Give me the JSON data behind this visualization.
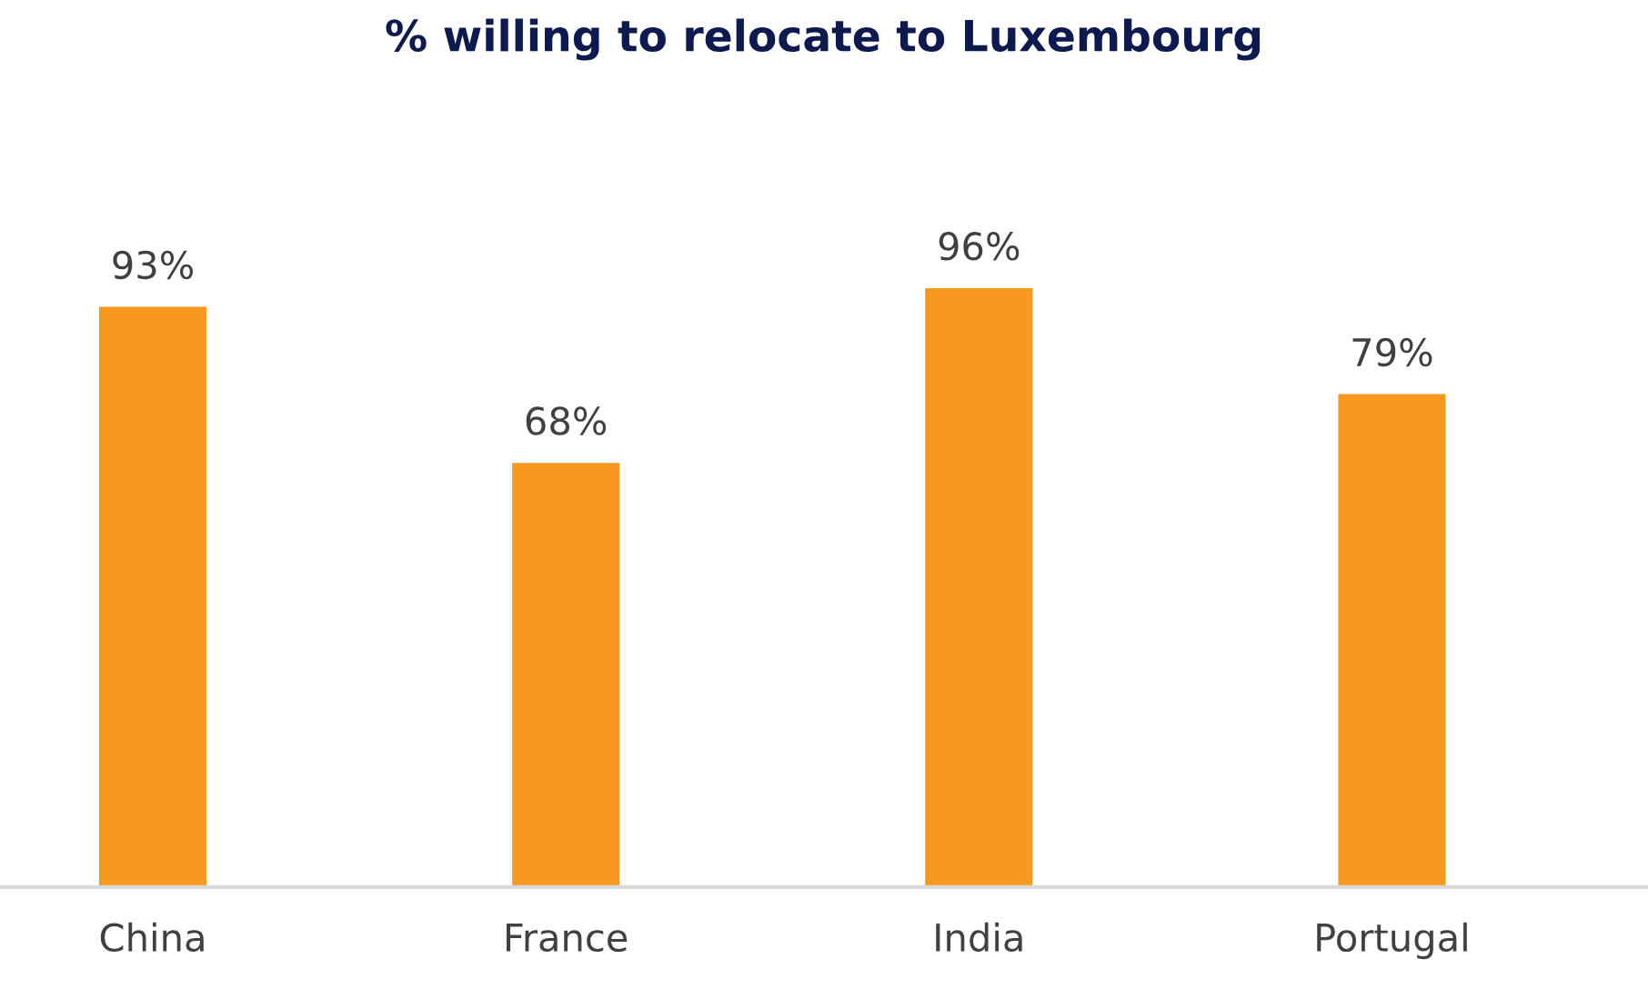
{
  "chart_data": {
    "type": "bar",
    "title": "% willing to relocate to Luxembourg",
    "categories": [
      "China",
      "France",
      "India",
      "Portugal"
    ],
    "values": [
      93,
      68,
      96,
      79
    ],
    "value_labels": [
      "93%",
      "68%",
      "96%",
      "79%"
    ],
    "color": "#f7991f",
    "grid": false,
    "legend": false
  }
}
